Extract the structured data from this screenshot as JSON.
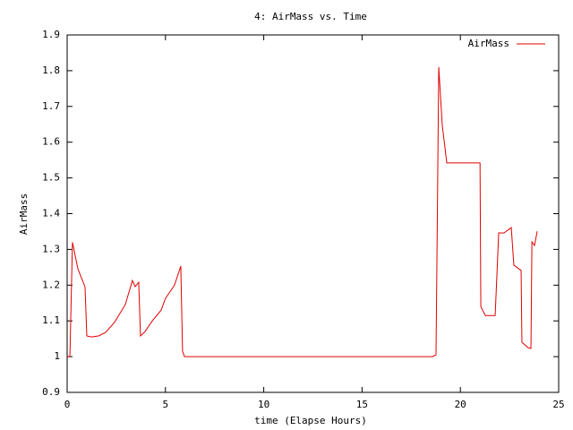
{
  "chart_data": {
    "type": "line",
    "title": "4: AirMass vs. Time",
    "x_label": "time (Elapse Hours)",
    "y_label": "AirMass",
    "x": [
      0,
      0.14,
      0.27,
      0.55,
      0.91,
      1.0,
      1.23,
      1.6,
      1.96,
      2.41,
      2.96,
      3.32,
      3.46,
      3.64,
      3.73,
      3.96,
      4.33,
      4.78,
      5.0,
      5.46,
      5.78,
      5.87,
      5.97,
      18.58,
      18.76,
      18.8,
      18.9,
      19.08,
      19.31,
      21.0,
      21.04,
      21.27,
      21.77,
      21.95,
      22.22,
      22.59,
      22.72,
      23.09,
      23.13,
      23.45,
      23.59,
      23.64,
      23.77,
      23.91
    ],
    "series": [
      {
        "name": "AirMass",
        "color": "#e00000",
        "values": [
          1.0,
          1.0,
          1.32,
          1.245,
          1.195,
          1.058,
          1.055,
          1.058,
          1.068,
          1.096,
          1.146,
          1.213,
          1.196,
          1.208,
          1.058,
          1.07,
          1.1,
          1.13,
          1.163,
          1.2,
          1.253,
          1.015,
          1.0,
          1.0,
          1.005,
          1.22,
          1.81,
          1.647,
          1.542,
          1.542,
          1.14,
          1.115,
          1.115,
          1.346,
          1.346,
          1.361,
          1.256,
          1.241,
          1.04,
          1.025,
          1.023,
          1.321,
          1.311,
          1.351
        ]
      }
    ],
    "xlim": [
      0,
      25
    ],
    "xticks": [
      0,
      5,
      10,
      15,
      20,
      25
    ],
    "ylim": [
      0.9,
      1.9
    ],
    "yticks": [
      0.9,
      1,
      1.1,
      1.2,
      1.3,
      1.4,
      1.5,
      1.6,
      1.7,
      1.8,
      1.9
    ],
    "legend": "top-right"
  }
}
